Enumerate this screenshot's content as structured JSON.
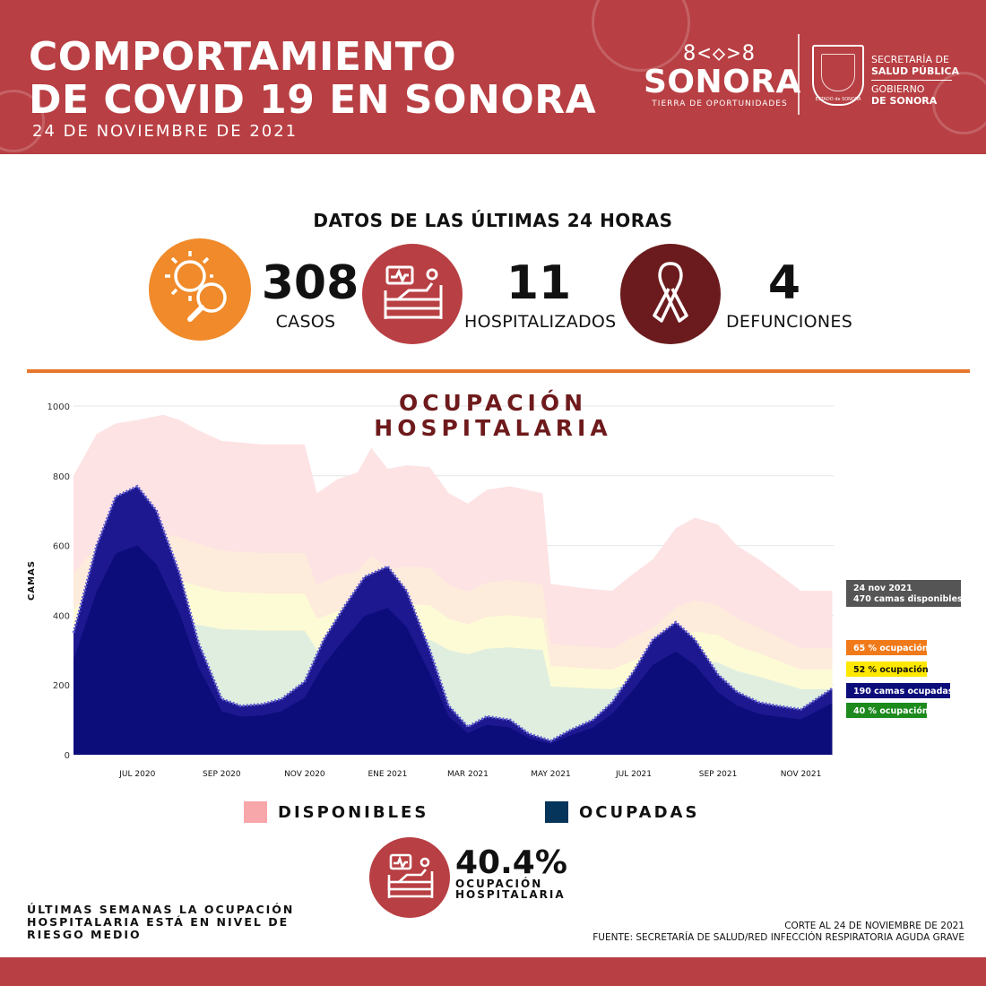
{
  "header": {
    "title_line1": "COMPORTAMIENTO",
    "title_line2": "DE COVID 19 EN SONORA",
    "date": "24 DE NOVIEMBRE DE 2021",
    "logo_name": "SONORA",
    "logo_tagline": "TIERRA DE OPORTUNIDADES",
    "secretaria_line1": "SECRETARÍA DE",
    "secretaria_line2": "SALUD PÚBLICA",
    "gobierno_line1": "GOBIERNO",
    "gobierno_line2": "DE SONORA",
    "shield_caption": "ESTADO de SONORA"
  },
  "kpi": {
    "title": "DATOS DE LAS ÚLTIMAS 24 HORAS",
    "items": [
      {
        "value": "308",
        "label": "CASOS",
        "icon": "virus-magnifier-icon",
        "color": "#f08a2a"
      },
      {
        "value": "11",
        "label": "HOSPITALIZADOS",
        "icon": "hospital-bed-icon",
        "color": "#b83f43"
      },
      {
        "value": "4",
        "label": "DEFUNCIONES",
        "icon": "ribbon-icon",
        "color": "#6b1b1d"
      }
    ]
  },
  "colors": {
    "header": "#b83f43",
    "orange_rule": "#e8772e",
    "available": "#f7a6aa",
    "occupied": "#05355a",
    "occupied_fill": "#0c0d7a",
    "band_65": "#fde0d2",
    "band_52": "#fdfbd6",
    "band_40": "#dfeedf"
  },
  "chart_data": {
    "type": "area",
    "title_line1": "OCUPACIÓN",
    "title_line2": "HOSPITALARIA",
    "ylabel": "CAMAS",
    "ylim": [
      0,
      1000
    ],
    "yticks": [
      0,
      200,
      400,
      600,
      800,
      1000
    ],
    "xlim": [
      "2020-05-15",
      "2021-11-25"
    ],
    "xticks": [
      {
        "date": "2020-07-01",
        "label": "JUL 2020"
      },
      {
        "date": "2020-09-01",
        "label": "SEP 2020"
      },
      {
        "date": "2020-11-01",
        "label": "NOV 2020"
      },
      {
        "date": "2021-01-01",
        "label": "ENE 2021"
      },
      {
        "date": "2021-03-01",
        "label": "MAR 2021"
      },
      {
        "date": "2021-05-01",
        "label": "MAY 2021"
      },
      {
        "date": "2021-07-01",
        "label": "JUL 2021"
      },
      {
        "date": "2021-09-01",
        "label": "SEP 2021"
      },
      {
        "date": "2021-11-01",
        "label": "NOV 2021"
      }
    ],
    "series": [
      {
        "name": "DISPONIBLES",
        "color": "#f7a6aa",
        "x": [
          "2020-05-15",
          "2020-06-01",
          "2020-06-15",
          "2020-07-01",
          "2020-07-20",
          "2020-08-01",
          "2020-08-15",
          "2020-09-01",
          "2020-10-01",
          "2020-10-15",
          "2020-11-01",
          "2020-11-10",
          "2020-11-25",
          "2020-12-10",
          "2020-12-20",
          "2021-01-01",
          "2021-01-15",
          "2021-02-01",
          "2021-02-15",
          "2021-03-01",
          "2021-03-15",
          "2021-04-01",
          "2021-04-25",
          "2021-05-01",
          "2021-05-20",
          "2021-06-01",
          "2021-06-15",
          "2021-07-01",
          "2021-07-15",
          "2021-08-01",
          "2021-08-15",
          "2021-09-01",
          "2021-09-15",
          "2021-10-01",
          "2021-10-15",
          "2021-11-01",
          "2021-11-24"
        ],
        "y": [
          800,
          920,
          950,
          960,
          975,
          960,
          930,
          900,
          890,
          890,
          890,
          750,
          790,
          810,
          880,
          820,
          830,
          825,
          750,
          720,
          760,
          770,
          750,
          490,
          480,
          475,
          470,
          520,
          560,
          650,
          680,
          660,
          600,
          560,
          520,
          470,
          470
        ]
      },
      {
        "name": "OCUPADAS",
        "color": "#05355a",
        "x": [
          "2020-05-15",
          "2020-06-01",
          "2020-06-15",
          "2020-07-01",
          "2020-07-15",
          "2020-08-01",
          "2020-08-15",
          "2020-09-01",
          "2020-09-15",
          "2020-10-01",
          "2020-10-15",
          "2020-11-01",
          "2020-11-15",
          "2020-12-01",
          "2020-12-15",
          "2021-01-01",
          "2021-01-15",
          "2021-02-01",
          "2021-02-15",
          "2021-03-01",
          "2021-03-15",
          "2021-04-01",
          "2021-04-15",
          "2021-05-01",
          "2021-05-15",
          "2021-06-01",
          "2021-06-15",
          "2021-07-01",
          "2021-07-15",
          "2021-08-01",
          "2021-08-15",
          "2021-09-01",
          "2021-09-15",
          "2021-10-01",
          "2021-10-15",
          "2021-11-01",
          "2021-11-24"
        ],
        "y": [
          350,
          600,
          740,
          770,
          700,
          520,
          320,
          160,
          140,
          145,
          160,
          210,
          330,
          430,
          510,
          540,
          470,
          300,
          140,
          80,
          110,
          100,
          60,
          40,
          70,
          100,
          150,
          240,
          330,
          380,
          330,
          230,
          180,
          150,
          140,
          130,
          190
        ]
      }
    ],
    "reference_lines": [
      {
        "label": "65 % ocupación",
        "color": "#f07a1a"
      },
      {
        "label": "52 % ocupación",
        "color": "#ffe800"
      },
      {
        "label": "40 % ocupación",
        "color": "#1d8a1d"
      }
    ],
    "annotations": [
      {
        "line1": "24 nov 2021",
        "line2": "470 camas disponibles",
        "color": "#555555"
      },
      {
        "line1": "190 camas ocupadas",
        "color": "#0c0d7a"
      }
    ],
    "legend": [
      "DISPONIBLES",
      "OCUPADAS"
    ]
  },
  "summary": {
    "occupancy_value": "40.4%",
    "occupancy_label_line1": "OCUPACIÓN",
    "occupancy_label_line2": "HOSPITALARIA",
    "risk_text": "ÚLTIMAS SEMANAS LA OCUPACIÓN HOSPITALARIA ESTÁ EN NIVEL DE RIESGO MEDIO",
    "cutoff": "CORTE AL 24 DE NOVIEMBRE DE 2021",
    "source": "FUENTE: SECRETARÍA DE SALUD/RED INFECCIÓN RESPIRATORIA AGUDA GRAVE"
  }
}
